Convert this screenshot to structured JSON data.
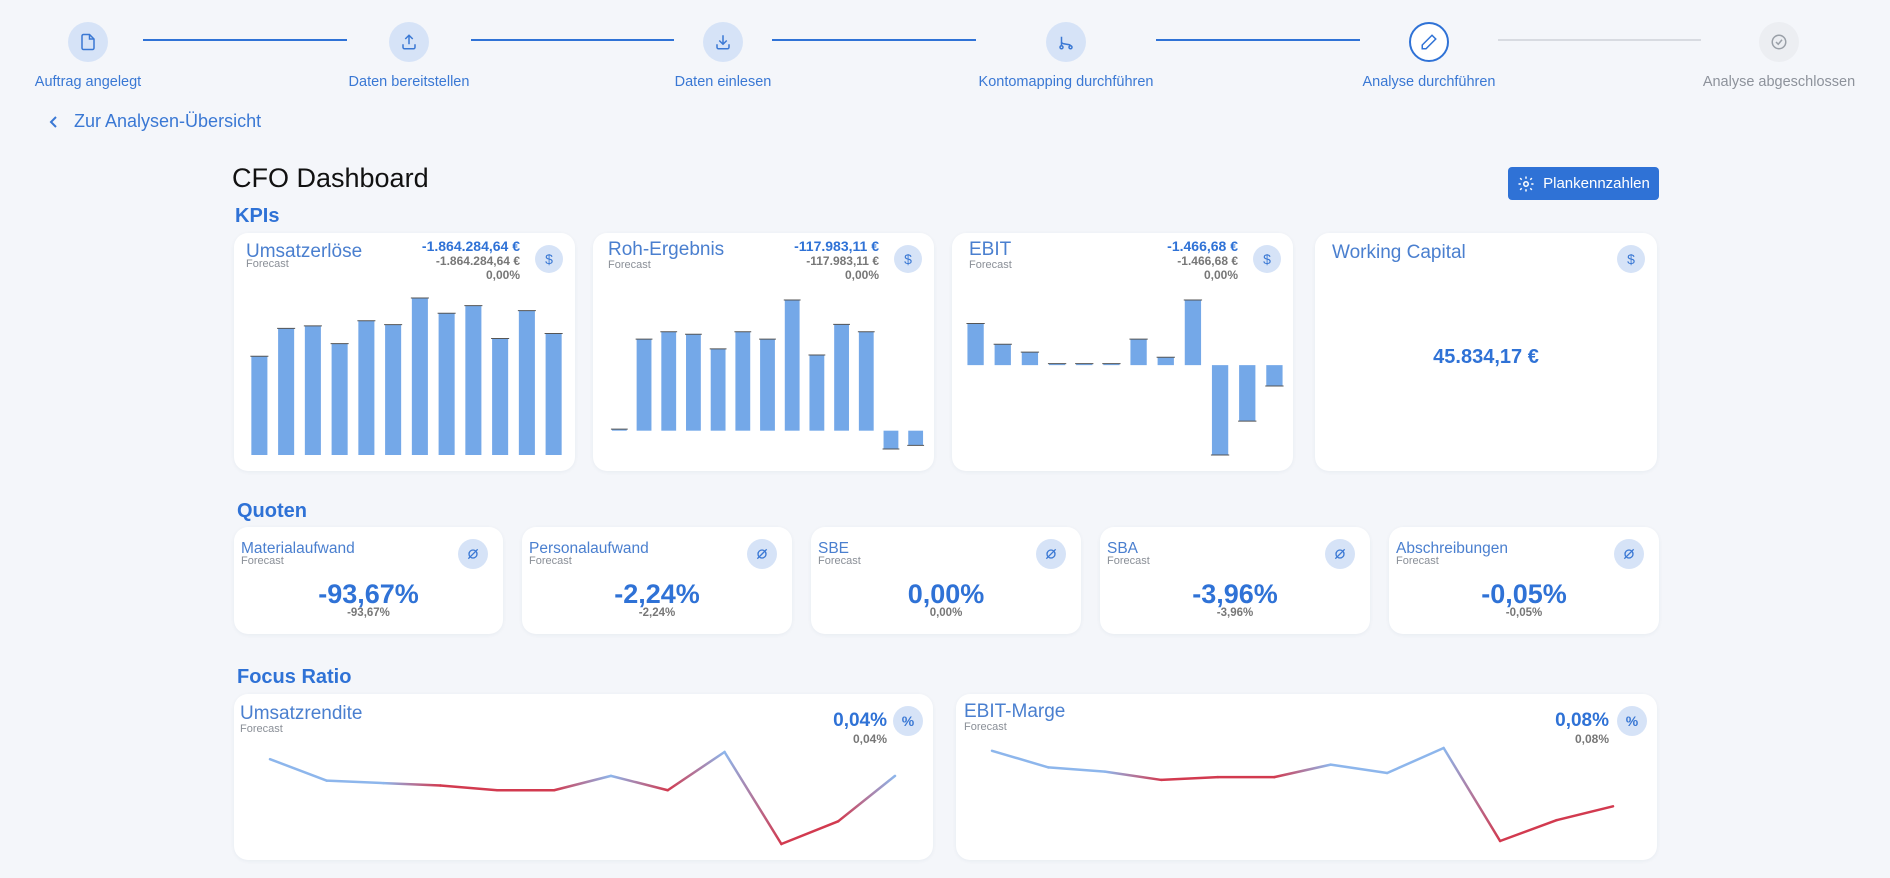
{
  "stepper": {
    "steps": [
      {
        "label": "Auftrag angelegt",
        "icon": "file-icon",
        "state": "done"
      },
      {
        "label": "Daten bereitstellen",
        "icon": "upload-icon",
        "state": "done"
      },
      {
        "label": "Daten einlesen",
        "icon": "download-icon",
        "state": "done"
      },
      {
        "label": "Kontomapping durchführen",
        "icon": "route-icon",
        "state": "done"
      },
      {
        "label": "Analyse durchführen",
        "icon": "pencil-icon",
        "state": "active"
      },
      {
        "label": "Analyse abgeschlossen",
        "icon": "check-circle-icon",
        "state": "todo"
      }
    ]
  },
  "nav": {
    "back_label": "Zur Analysen-Übersicht"
  },
  "page": {
    "title": "CFO Dashboard",
    "plan_button": "Plankennzahlen"
  },
  "sections": {
    "kpis": "KPIs",
    "quoten": "Quoten",
    "focus": "Focus Ratio"
  },
  "kpis": [
    {
      "title": "Umsatzerlöse",
      "sub": "Forecast",
      "main": "-1.864.284,64 €",
      "second": "-1.864.284,64 €",
      "third": "0,00%",
      "icon": "dollar-icon"
    },
    {
      "title": "Roh-Ergebnis",
      "sub": "Forecast",
      "main": "-117.983,11 €",
      "second": "-117.983,11 €",
      "third": "0,00%",
      "icon": "dollar-icon"
    },
    {
      "title": "EBIT",
      "sub": "Forecast",
      "main": "-1.466,68 €",
      "second": "-1.466,68 €",
      "third": "0,00%",
      "icon": "dollar-icon"
    },
    {
      "title": "Working Capital",
      "value": "45.834,17 €",
      "icon": "dollar-icon"
    }
  ],
  "quoten": [
    {
      "title": "Materialaufwand",
      "sub": "Forecast",
      "value": "-93,67%",
      "small": "-93,67%",
      "icon": "average-icon"
    },
    {
      "title": "Personalaufwand",
      "sub": "Forecast",
      "value": "-2,24%",
      "small": "-2,24%",
      "icon": "average-icon"
    },
    {
      "title": "SBE",
      "sub": "Forecast",
      "value": "0,00%",
      "small": "0,00%",
      "icon": "average-icon"
    },
    {
      "title": "SBA",
      "sub": "Forecast",
      "value": "-3,96%",
      "small": "-3,96%",
      "icon": "average-icon"
    },
    {
      "title": "Abschreibungen",
      "sub": "Forecast",
      "value": "-0,05%",
      "small": "-0,05%",
      "icon": "average-icon"
    }
  ],
  "focus": [
    {
      "title": "Umsatzrendite",
      "sub": "Forecast",
      "main": "0,04%",
      "second": "0,04%",
      "icon": "percent-icon"
    },
    {
      "title": "EBIT-Marge",
      "sub": "Forecast",
      "main": "0,08%",
      "second": "0,08%",
      "icon": "percent-icon"
    }
  ],
  "colors": {
    "accent": "#2f72d6",
    "bar": "#74a8e8",
    "line_pos": "#8db6ec",
    "line_neg": "#d23a4f"
  },
  "chart_data": [
    {
      "type": "bar",
      "name": "Umsatzerlöse",
      "values": [
        78,
        100,
        102,
        88,
        106,
        103,
        124,
        112,
        118,
        92,
        114,
        96
      ]
    },
    {
      "type": "bar",
      "name": "Roh-Ergebnis",
      "values": [
        0,
        75,
        81,
        79,
        67,
        81,
        75,
        107,
        62,
        87,
        81,
        -15,
        -12
      ]
    },
    {
      "type": "bar",
      "name": "EBIT",
      "values": [
        32,
        16,
        10,
        1,
        1,
        1,
        20,
        6,
        50,
        -69,
        -43,
        -16
      ]
    },
    {
      "type": "line",
      "name": "Umsatzrendite",
      "values": [
        0.34,
        0.16,
        0.14,
        0.12,
        0.08,
        0.08,
        0.2,
        0.08,
        0.4,
        -0.37,
        -0.18,
        0.2
      ]
    },
    {
      "type": "line",
      "name": "EBIT-Marge",
      "values": [
        0.3,
        0.18,
        0.15,
        0.09,
        0.11,
        0.11,
        0.2,
        0.14,
        0.32,
        -0.35,
        -0.2,
        -0.1
      ]
    }
  ]
}
